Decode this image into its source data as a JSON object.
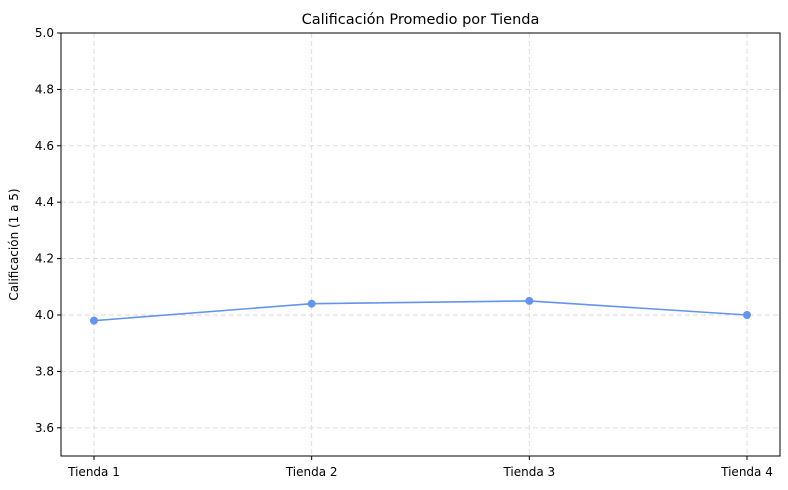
{
  "chart_data": {
    "type": "line",
    "title": "Calificación Promedio por Tienda",
    "xlabel": "",
    "ylabel": "Calificación (1 a 5)",
    "categories": [
      "Tienda 1",
      "Tienda 2",
      "Tienda 3",
      "Tienda 4"
    ],
    "series": [
      {
        "values": [
          3.98,
          4.04,
          4.05,
          4.0
        ]
      }
    ],
    "ylim": [
      3.5,
      5.0
    ],
    "yticks": [
      "3.6",
      "3.8",
      "4.0",
      "4.2",
      "4.4",
      "4.6",
      "4.8",
      "5.0"
    ],
    "grid": true,
    "line_color": "#6495ED"
  }
}
